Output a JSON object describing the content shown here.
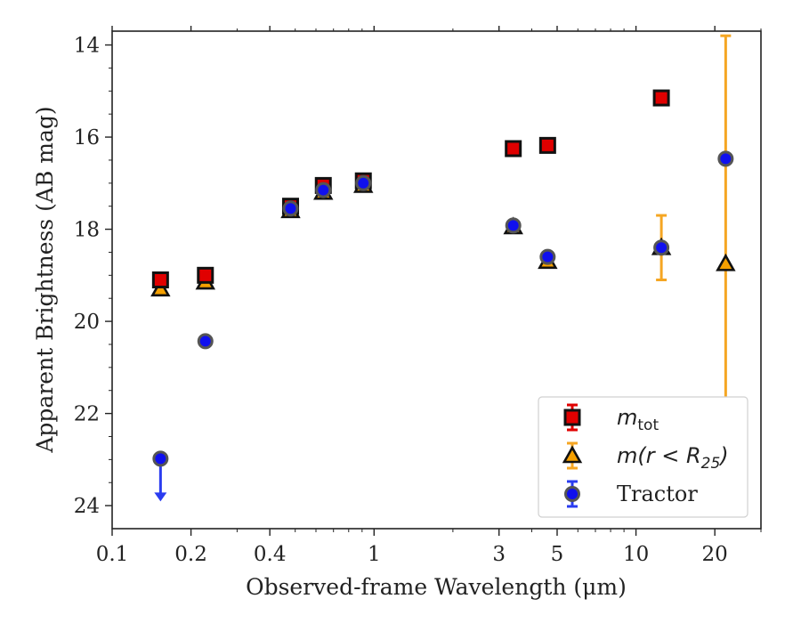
{
  "chart_data": {
    "type": "scatter",
    "xlabel": "Observed-frame Wavelength (μm)",
    "ylabel": "Apparent Brightness (AB mag)",
    "xscale": "log",
    "xlim": [
      0.1,
      30
    ],
    "ylim": [
      24.5,
      13.7
    ],
    "y_inverted": true,
    "grid": false,
    "legend_position": "lower-right",
    "x_ticks": [
      {
        "value": 0.1,
        "label": "0.1"
      },
      {
        "value": 0.2,
        "label": "0.2"
      },
      {
        "value": 0.4,
        "label": "0.4"
      },
      {
        "value": 1,
        "label": "1"
      },
      {
        "value": 3,
        "label": "3"
      },
      {
        "value": 5,
        "label": "5"
      },
      {
        "value": 10,
        "label": "10"
      },
      {
        "value": 20,
        "label": "20"
      }
    ],
    "y_ticks": [
      {
        "value": 14,
        "label": "14"
      },
      {
        "value": 16,
        "label": "16"
      },
      {
        "value": 18,
        "label": "18"
      },
      {
        "value": 20,
        "label": "20"
      },
      {
        "value": 22,
        "label": "22"
      },
      {
        "value": 24,
        "label": "24"
      }
    ],
    "series": [
      {
        "name": "m_tot",
        "legend_main": "m",
        "legend_sub": "tot",
        "legend_tail": "",
        "marker": "square",
        "color": "#e00000",
        "edge": "#111111",
        "error_color": "#e00000",
        "points": [
          {
            "x": 0.153,
            "y": 19.1,
            "err": 0.1
          },
          {
            "x": 0.227,
            "y": 19.0,
            "err": 0.1
          },
          {
            "x": 0.48,
            "y": 17.5,
            "err": 0.1
          },
          {
            "x": 0.64,
            "y": 17.05,
            "err": 0.1
          },
          {
            "x": 0.91,
            "y": 16.95,
            "err": 0.1
          },
          {
            "x": 3.4,
            "y": 16.25,
            "err": 0.05
          },
          {
            "x": 4.6,
            "y": 16.18,
            "err": 0.05
          },
          {
            "x": 12.5,
            "y": 15.15,
            "err": 0.05
          }
        ]
      },
      {
        "name": "m(r<R25)",
        "legend_main": "m(r < R",
        "legend_sub": "25",
        "legend_tail": ")",
        "marker": "triangle",
        "color": "#f5a000",
        "edge": "#111111",
        "error_color": "#f5a623",
        "points": [
          {
            "x": 0.153,
            "y": 19.3,
            "err": 0.05
          },
          {
            "x": 0.227,
            "y": 19.15,
            "err": 0.05
          },
          {
            "x": 0.48,
            "y": 17.6,
            "err": 0.05
          },
          {
            "x": 0.64,
            "y": 17.2,
            "err": 0.05
          },
          {
            "x": 0.91,
            "y": 17.05,
            "err": 0.05
          },
          {
            "x": 3.4,
            "y": 17.95,
            "err": 0.05
          },
          {
            "x": 4.6,
            "y": 18.7,
            "err": 0.05
          },
          {
            "x": 12.5,
            "y": 18.4,
            "err": 0.7
          },
          {
            "x": 22,
            "y": 18.75,
            "err": 4.95
          }
        ]
      },
      {
        "name": "Tractor",
        "legend_main": "Tractor",
        "legend_sub": "",
        "legend_tail": "",
        "marker": "circle",
        "color": "#1010ee",
        "edge": "#555555",
        "error_color": "#2a3cf0",
        "points": [
          {
            "x": 0.153,
            "y": 22.98,
            "err": 0,
            "upper_limit": true
          },
          {
            "x": 0.227,
            "y": 20.43,
            "err": 0.05
          },
          {
            "x": 0.48,
            "y": 17.55,
            "err": 0.05
          },
          {
            "x": 0.64,
            "y": 17.15,
            "err": 0.05
          },
          {
            "x": 0.91,
            "y": 17.0,
            "err": 0.05
          },
          {
            "x": 3.4,
            "y": 17.92,
            "err": 0.05
          },
          {
            "x": 4.6,
            "y": 18.6,
            "err": 0.05
          },
          {
            "x": 12.5,
            "y": 18.4,
            "err": 0.05
          },
          {
            "x": 22,
            "y": 16.47,
            "err": 0.05
          }
        ]
      }
    ]
  }
}
